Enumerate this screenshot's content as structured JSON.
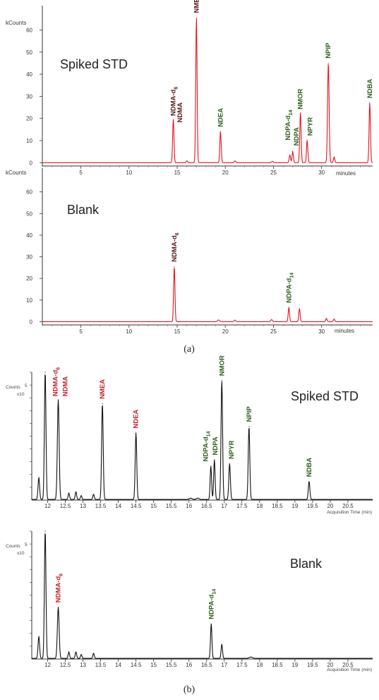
{
  "captions": {
    "a": "(a)",
    "b": "(b)"
  },
  "colors": {
    "red": "#e8131b",
    "black": "#111111",
    "label_red": "#c0242b",
    "label_green": "#2e5e1c",
    "label_dark": "#5a1a1a"
  },
  "chart_data": [
    {
      "id": "a-spiked",
      "type": "line",
      "title": "Spiked STD",
      "ylabel": "kCounts",
      "xlabel": "minutes",
      "xlim": [
        1,
        35.3
      ],
      "ylim": [
        -1.5,
        71
      ],
      "xticks": [
        5,
        10,
        15,
        20,
        25,
        30
      ],
      "yticks": [
        0,
        10,
        20,
        30,
        40,
        50,
        60
      ],
      "baseline": 0,
      "peaks": [
        {
          "x": 14.6,
          "y": 19.5,
          "w": 0.07
        },
        {
          "x": 17.0,
          "y": 65.5,
          "w": 0.07
        },
        {
          "x": 19.5,
          "y": 14.0,
          "w": 0.07
        },
        {
          "x": 26.7,
          "y": 3.5,
          "w": 0.07
        },
        {
          "x": 27.0,
          "y": 5.0,
          "w": 0.07
        },
        {
          "x": 27.8,
          "y": 22.5,
          "w": 0.07
        },
        {
          "x": 28.5,
          "y": 10.0,
          "w": 0.07
        },
        {
          "x": 30.7,
          "y": 45.0,
          "w": 0.08
        },
        {
          "x": 31.3,
          "y": 2.5,
          "w": 0.07
        },
        {
          "x": 35.0,
          "y": 27.0,
          "w": 0.07
        },
        {
          "x": 16.0,
          "y": 0.8,
          "w": 0.08
        },
        {
          "x": 21.0,
          "y": 0.8,
          "w": 0.08
        },
        {
          "x": 24.9,
          "y": 0.6,
          "w": 0.1
        }
      ],
      "labels": [
        {
          "text": "NDMA-d",
          "sub": "6",
          "x": 14.6,
          "y": 20.5,
          "color": "label_dark"
        },
        {
          "text": "NDMA",
          "x": 15.3,
          "y": 17.5,
          "color": "label_dark"
        },
        {
          "text": "NMEA",
          "x": 17.0,
          "y": 67.0,
          "color": "label_dark"
        },
        {
          "text": "NDEA",
          "x": 19.5,
          "y": 15.5,
          "color": "label_green"
        },
        {
          "text": "NDPA-d",
          "sub": "14",
          "x": 26.5,
          "y": 9.5,
          "color": "label_green"
        },
        {
          "text": "NDPA",
          "x": 27.4,
          "y": 7.0,
          "color": "label_green"
        },
        {
          "text": "NMOR",
          "x": 27.8,
          "y": 23.5,
          "color": "label_green"
        },
        {
          "text": "NPYR",
          "x": 28.8,
          "y": 11.5,
          "color": "label_green"
        },
        {
          "text": "NPIP",
          "x": 30.7,
          "y": 46.5,
          "color": "label_green"
        },
        {
          "text": "NDBA",
          "x": 35.0,
          "y": 28.5,
          "color": "label_green"
        }
      ]
    },
    {
      "id": "a-blank",
      "type": "line",
      "title": "Blank",
      "ylabel": "kCounts",
      "xlabel": "minutes",
      "xlim": [
        1,
        35.3
      ],
      "ylim": [
        -1.5,
        71
      ],
      "xticks": [
        5,
        10,
        15,
        20,
        25,
        30
      ],
      "yticks": [
        0,
        10,
        20,
        30,
        40,
        50,
        60
      ],
      "baseline": 0,
      "peaks": [
        {
          "x": 14.7,
          "y": 25.5,
          "w": 0.07
        },
        {
          "x": 26.6,
          "y": 6.5,
          "w": 0.07
        },
        {
          "x": 27.7,
          "y": 6.0,
          "w": 0.07
        },
        {
          "x": 19.3,
          "y": 0.8,
          "w": 0.1
        },
        {
          "x": 21.0,
          "y": 0.7,
          "w": 0.08
        },
        {
          "x": 24.8,
          "y": 0.9,
          "w": 0.1
        },
        {
          "x": 30.5,
          "y": 1.5,
          "w": 0.07
        },
        {
          "x": 31.3,
          "y": 1.2,
          "w": 0.07
        }
      ],
      "labels": [
        {
          "text": "NDMA-d",
          "sub": "6",
          "x": 14.7,
          "y": 27.0,
          "color": "label_dark"
        },
        {
          "text": "NDPA-d",
          "sub": "14",
          "x": 26.6,
          "y": 8.0,
          "color": "label_green"
        }
      ]
    },
    {
      "id": "b-spiked",
      "type": "line",
      "title": "Spiked STD",
      "ylabel": "Counts",
      "yunit": "x10",
      "yexp": "5",
      "xlabel": "Acquisition Time (min)",
      "xlim": [
        11.55,
        21.2
      ],
      "ylim": [
        0,
        1
      ],
      "xticks": [
        12,
        12.5,
        13,
        13.5,
        14,
        14.5,
        15,
        15.5,
        16,
        16.5,
        17,
        17.5,
        18,
        18.5,
        19,
        19.5,
        20,
        20.5
      ],
      "baseline": 0.005,
      "peaks": [
        {
          "x": 11.75,
          "y": 0.17,
          "w": 0.022
        },
        {
          "x": 11.93,
          "y": 1.0,
          "w": 0.022
        },
        {
          "x": 12.3,
          "y": 0.78,
          "w": 0.025
        },
        {
          "x": 12.6,
          "y": 0.05,
          "w": 0.02
        },
        {
          "x": 12.8,
          "y": 0.06,
          "w": 0.02
        },
        {
          "x": 12.95,
          "y": 0.03,
          "w": 0.02
        },
        {
          "x": 13.3,
          "y": 0.04,
          "w": 0.02
        },
        {
          "x": 13.55,
          "y": 0.75,
          "w": 0.022
        },
        {
          "x": 14.5,
          "y": 0.52,
          "w": 0.022
        },
        {
          "x": 16.62,
          "y": 0.26,
          "w": 0.02
        },
        {
          "x": 16.72,
          "y": 0.31,
          "w": 0.02
        },
        {
          "x": 16.93,
          "y": 0.93,
          "w": 0.022
        },
        {
          "x": 17.15,
          "y": 0.28,
          "w": 0.022
        },
        {
          "x": 17.7,
          "y": 0.57,
          "w": 0.022
        },
        {
          "x": 19.4,
          "y": 0.14,
          "w": 0.022
        },
        {
          "x": 16.05,
          "y": 0.01,
          "w": 0.04
        },
        {
          "x": 16.25,
          "y": 0.01,
          "w": 0.04
        }
      ],
      "labels": [
        {
          "text": "NDMA-d",
          "sub": "6",
          "x": 12.22,
          "y": 0.8,
          "color": "label_red"
        },
        {
          "text": "NDMA",
          "x": 12.5,
          "y": 0.8,
          "color": "label_red"
        },
        {
          "text": "NMEA",
          "x": 13.55,
          "y": 0.78,
          "color": "label_red"
        },
        {
          "text": "NDEA",
          "x": 14.5,
          "y": 0.55,
          "color": "label_red"
        },
        {
          "text": "NDPA-d",
          "sub": "14",
          "x": 16.47,
          "y": 0.29,
          "color": "label_green"
        },
        {
          "text": "NDPA",
          "x": 16.74,
          "y": 0.34,
          "color": "label_green"
        },
        {
          "text": "NMOR",
          "x": 16.93,
          "y": 0.96,
          "color": "label_green"
        },
        {
          "text": "NPYR",
          "x": 17.2,
          "y": 0.31,
          "color": "label_green"
        },
        {
          "text": "NPIP",
          "x": 17.7,
          "y": 0.6,
          "color": "label_green"
        },
        {
          "text": "NDBA",
          "x": 19.4,
          "y": 0.17,
          "color": "label_green"
        }
      ]
    },
    {
      "id": "b-blank",
      "type": "line",
      "title": "Blank",
      "ylabel": "Counts",
      "yunit": "x10",
      "yexp": "5",
      "xlabel": "Acquisition Time (min)",
      "xlim": [
        11.55,
        21.2
      ],
      "ylim": [
        0,
        1
      ],
      "xticks": [
        12,
        12.5,
        13,
        13.5,
        14,
        14.5,
        15,
        15.5,
        16,
        16.5,
        17,
        17.5,
        18,
        18.5,
        19,
        19.5,
        20,
        20.5
      ],
      "baseline": 0.005,
      "peaks": [
        {
          "x": 11.75,
          "y": 0.17,
          "w": 0.022
        },
        {
          "x": 11.93,
          "y": 1.0,
          "w": 0.022
        },
        {
          "x": 12.3,
          "y": 0.4,
          "w": 0.025
        },
        {
          "x": 12.6,
          "y": 0.05,
          "w": 0.02
        },
        {
          "x": 12.8,
          "y": 0.05,
          "w": 0.02
        },
        {
          "x": 12.95,
          "y": 0.03,
          "w": 0.02
        },
        {
          "x": 13.3,
          "y": 0.04,
          "w": 0.02
        },
        {
          "x": 16.63,
          "y": 0.27,
          "w": 0.02
        },
        {
          "x": 16.93,
          "y": 0.11,
          "w": 0.02
        },
        {
          "x": 17.75,
          "y": 0.01,
          "w": 0.05
        }
      ],
      "labels": [
        {
          "text": "NDMA-d",
          "sub": "6",
          "x": 12.3,
          "y": 0.43,
          "color": "label_red"
        },
        {
          "text": "NDPA-d",
          "sub": "14",
          "x": 16.63,
          "y": 0.3,
          "color": "label_green"
        }
      ]
    }
  ]
}
